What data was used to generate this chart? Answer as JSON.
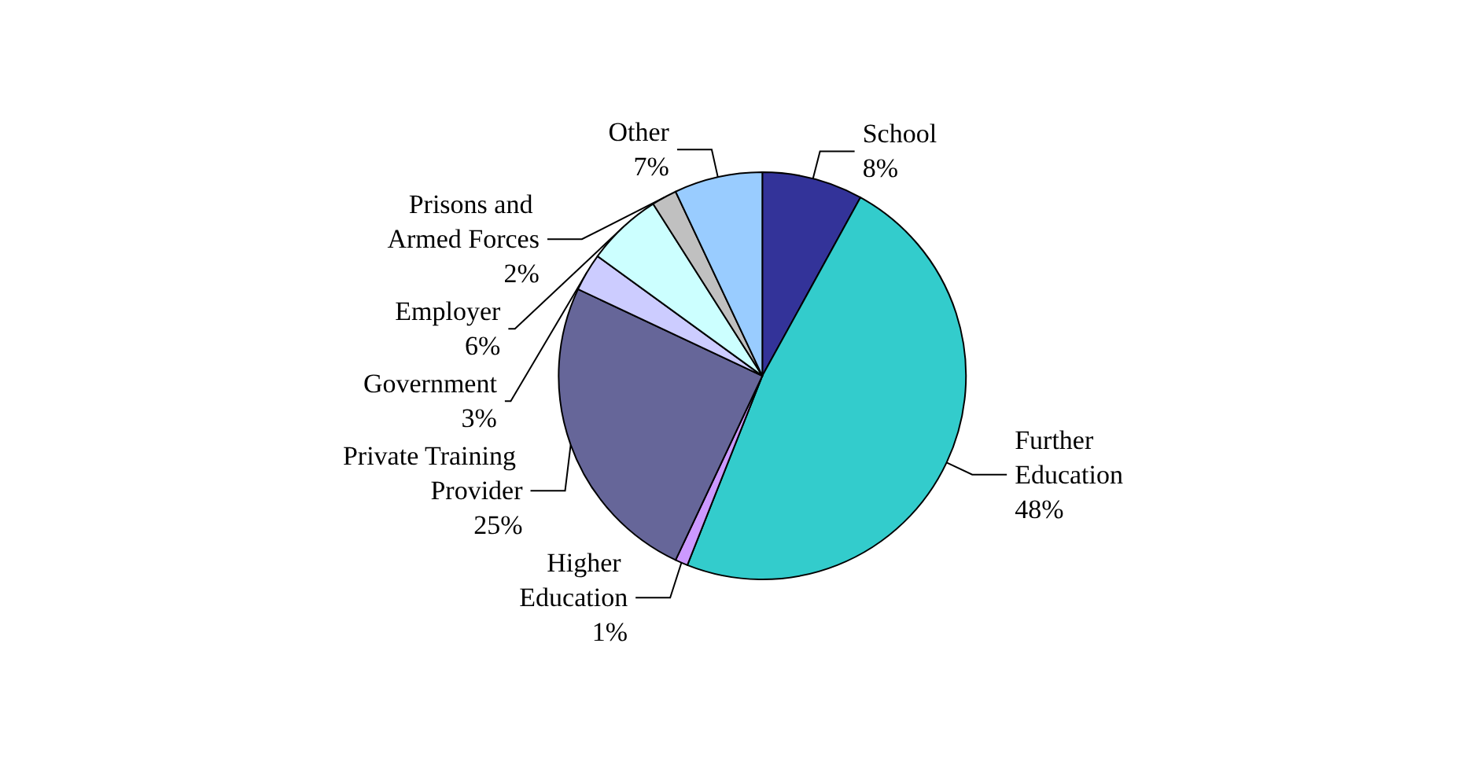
{
  "chart_data": {
    "type": "pie",
    "categories": [
      "School",
      "Further Education",
      "Higher Education",
      "Private Training Provider",
      "Government",
      "Employer",
      "Prisons and Armed Forces",
      "Other"
    ],
    "values": [
      8,
      48,
      1,
      25,
      3,
      6,
      2,
      7
    ],
    "value_labels": [
      "8%",
      "48%",
      "1%",
      "25%",
      "3%",
      "6%",
      "2%",
      "7%"
    ],
    "colors": [
      "#333399",
      "#33cccc",
      "#cc99ff",
      "#666699",
      "#ccccff",
      "#ccffff",
      "#c0c0c0",
      "#99ccff"
    ],
    "legend": false
  }
}
